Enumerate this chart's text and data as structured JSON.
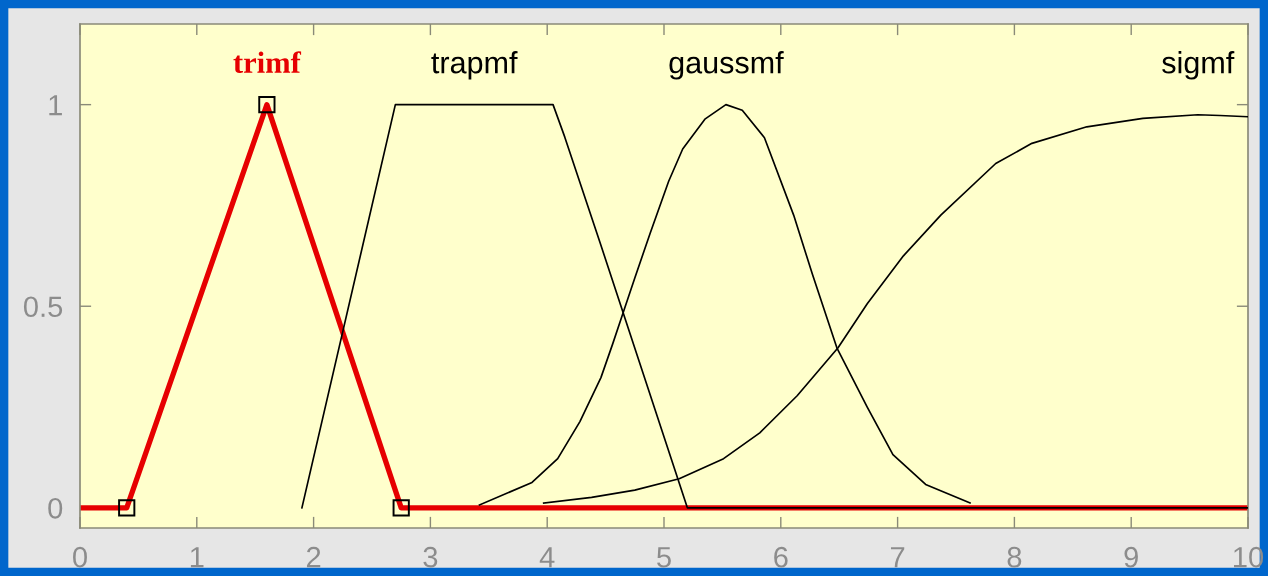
{
  "chart_data": {
    "type": "line",
    "xlim": [
      0,
      10
    ],
    "ylim": [
      -0.05,
      1.2
    ],
    "xticks": [
      0,
      1,
      2,
      3,
      4,
      5,
      6,
      7,
      8,
      9,
      10
    ],
    "yticks": [
      0,
      0.5,
      1
    ],
    "series": [
      {
        "name": "trimf",
        "color": "#e60000",
        "marker": "square",
        "x": [
          0,
          0.4,
          1.6,
          2.75,
          10
        ],
        "values": [
          0,
          0,
          1,
          0,
          0
        ]
      },
      {
        "name": "trapmf",
        "color": "#000000",
        "x": [
          1.9,
          2.7,
          4.05,
          4.15,
          4.45,
          5.2,
          10
        ],
        "values": [
          0,
          1,
          1,
          0.92,
          0.66,
          0,
          0
        ]
      },
      {
        "name": "gaussmf",
        "color": "#000000",
        "x": [
          3.42,
          3.87,
          4.09,
          4.28,
          4.46,
          4.56,
          4.64,
          4.75,
          4.88,
          5.04,
          5.16,
          5.35,
          5.53,
          5.67,
          5.86,
          6.11,
          6.27,
          6.48,
          6.74,
          6.96,
          7.24,
          7.62
        ],
        "values": [
          0.007,
          0.063,
          0.122,
          0.214,
          0.323,
          0.406,
          0.475,
          0.57,
          0.68,
          0.81,
          0.89,
          0.964,
          1,
          0.986,
          0.918,
          0.726,
          0.58,
          0.397,
          0.25,
          0.132,
          0.058,
          0.012
        ]
      },
      {
        "name": "sigmf",
        "color": "#000000",
        "x": [
          3.97,
          4.38,
          4.75,
          5.13,
          5.51,
          5.82,
          6.14,
          6.49,
          6.74,
          7.05,
          7.37,
          7.84,
          8.15,
          8.62,
          9.1,
          9.57,
          9.76,
          10
        ],
        "values": [
          0.012,
          0.026,
          0.044,
          0.072,
          0.122,
          0.186,
          0.278,
          0.397,
          0.506,
          0.625,
          0.726,
          0.854,
          0.904,
          0.945,
          0.966,
          0.975,
          0.973,
          0.97
        ]
      }
    ]
  }
}
